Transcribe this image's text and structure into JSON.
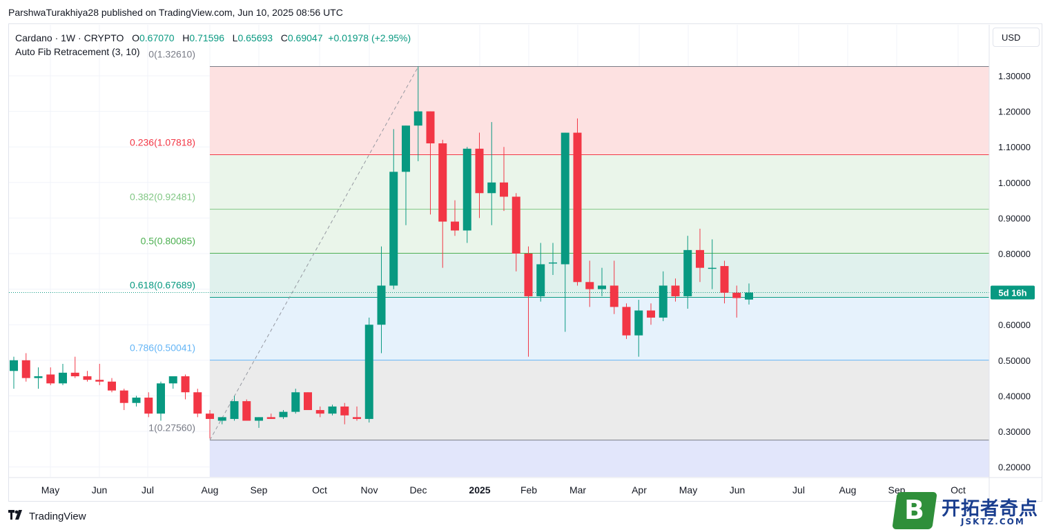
{
  "header": {
    "published_line": "ParshwaTurakhiya28 published on TradingView.com, Jun 10, 2025 08:56 UTC"
  },
  "legend": {
    "symbol": "Cardano · 1W · CRYPTO",
    "o_label": "O",
    "o_value": "0.67070",
    "h_label": "H",
    "h_value": "0.71596",
    "l_label": "L",
    "l_value": "0.65693",
    "c_label": "C",
    "c_value": "0.69047",
    "change": "+0.01978 (+2.95%)",
    "indicator": "Auto Fib Retracement (3, 10)"
  },
  "currency_button": "USD",
  "countdown_label": "5d 16h",
  "footer": {
    "brand": "TradingView"
  },
  "watermark": {
    "badge_letter": "B",
    "name": "开拓者奇点",
    "url": "JSKTZ.COM"
  },
  "colors": {
    "up": "#089981",
    "down": "#f23645",
    "fib_top_zone": "#fde1e1",
    "fib_green_zone": "#eaf5ea",
    "fib_teal_zone": "#e0f1ed",
    "fib_blue_zone": "#e6f2fc",
    "fib_gray_zone": "#ebebeb",
    "fib_bottom_zone": "#e2e6fb",
    "label_236": "#f23645",
    "label_382": "#81c784",
    "label_5": "#4caf50",
    "label_618": "#089981",
    "label_786": "#64b5f6",
    "label_0_1": "#787b86"
  },
  "chart_data": {
    "type": "candlestick",
    "symbol": "Cardano",
    "interval": "1W",
    "y_axis": {
      "min": 0.17,
      "max": 1.39,
      "ticks": [
        "1.30000",
        "1.20000",
        "1.10000",
        "1.00000",
        "0.90000",
        "0.80000",
        "0.70000",
        "0.60000",
        "0.50000",
        "0.40000",
        "0.30000",
        "0.20000"
      ],
      "position": "right"
    },
    "x_axis": {
      "ticks": [
        "May",
        "Jun",
        "Jul",
        "Aug",
        "Sep",
        "Oct",
        "Nov",
        "Dec",
        "2025",
        "Feb",
        "Mar",
        "Apr",
        "May",
        "Jun",
        "Jul",
        "Aug",
        "Sep",
        "Oct"
      ]
    },
    "current_price": 0.69047,
    "fib_levels": [
      {
        "ratio": "0",
        "label": "0(1.32610)",
        "price": 1.3261
      },
      {
        "ratio": "0.236",
        "label": "0.236(1.07818)",
        "price": 1.07818
      },
      {
        "ratio": "0.382",
        "label": "0.382(0.92481)",
        "price": 0.92481
      },
      {
        "ratio": "0.5",
        "label": "0.5(0.80085)",
        "price": 0.80085
      },
      {
        "ratio": "0.618",
        "label": "0.618(0.67689)",
        "price": 0.67689
      },
      {
        "ratio": "0.786",
        "label": "0.786(0.50041)",
        "price": 0.50041
      },
      {
        "ratio": "1",
        "label": "1(0.27560)",
        "price": 0.2756
      }
    ],
    "candles": [
      {
        "o": 0.47,
        "h": 0.51,
        "l": 0.42,
        "c": 0.5
      },
      {
        "o": 0.5,
        "h": 0.52,
        "l": 0.44,
        "c": 0.45
      },
      {
        "o": 0.45,
        "h": 0.48,
        "l": 0.42,
        "c": 0.455
      },
      {
        "o": 0.46,
        "h": 0.48,
        "l": 0.43,
        "c": 0.435
      },
      {
        "o": 0.435,
        "h": 0.49,
        "l": 0.43,
        "c": 0.465
      },
      {
        "o": 0.465,
        "h": 0.51,
        "l": 0.45,
        "c": 0.455
      },
      {
        "o": 0.455,
        "h": 0.47,
        "l": 0.44,
        "c": 0.445
      },
      {
        "o": 0.445,
        "h": 0.49,
        "l": 0.43,
        "c": 0.44
      },
      {
        "o": 0.44,
        "h": 0.45,
        "l": 0.41,
        "c": 0.415
      },
      {
        "o": 0.415,
        "h": 0.42,
        "l": 0.36,
        "c": 0.38
      },
      {
        "o": 0.38,
        "h": 0.4,
        "l": 0.37,
        "c": 0.395
      },
      {
        "o": 0.395,
        "h": 0.41,
        "l": 0.34,
        "c": 0.35
      },
      {
        "o": 0.35,
        "h": 0.44,
        "l": 0.33,
        "c": 0.435
      },
      {
        "o": 0.435,
        "h": 0.455,
        "l": 0.42,
        "c": 0.455
      },
      {
        "o": 0.455,
        "h": 0.46,
        "l": 0.39,
        "c": 0.41
      },
      {
        "o": 0.41,
        "h": 0.42,
        "l": 0.34,
        "c": 0.35
      },
      {
        "o": 0.35,
        "h": 0.36,
        "l": 0.28,
        "c": 0.335
      },
      {
        "o": 0.33,
        "h": 0.34,
        "l": 0.32,
        "c": 0.34
      },
      {
        "o": 0.335,
        "h": 0.4,
        "l": 0.33,
        "c": 0.385
      },
      {
        "o": 0.385,
        "h": 0.39,
        "l": 0.33,
        "c": 0.33
      },
      {
        "o": 0.33,
        "h": 0.34,
        "l": 0.31,
        "c": 0.34
      },
      {
        "o": 0.34,
        "h": 0.35,
        "l": 0.335,
        "c": 0.335
      },
      {
        "o": 0.34,
        "h": 0.36,
        "l": 0.335,
        "c": 0.355
      },
      {
        "o": 0.355,
        "h": 0.42,
        "l": 0.35,
        "c": 0.41
      },
      {
        "o": 0.41,
        "h": 0.41,
        "l": 0.36,
        "c": 0.36
      },
      {
        "o": 0.36,
        "h": 0.37,
        "l": 0.34,
        "c": 0.35
      },
      {
        "o": 0.35,
        "h": 0.375,
        "l": 0.345,
        "c": 0.37
      },
      {
        "o": 0.37,
        "h": 0.38,
        "l": 0.32,
        "c": 0.345
      },
      {
        "o": 0.34,
        "h": 0.37,
        "l": 0.33,
        "c": 0.335
      },
      {
        "o": 0.335,
        "h": 0.62,
        "l": 0.325,
        "c": 0.6
      },
      {
        "o": 0.6,
        "h": 0.82,
        "l": 0.52,
        "c": 0.71
      },
      {
        "o": 0.71,
        "h": 1.15,
        "l": 0.7,
        "c": 1.03
      },
      {
        "o": 1.03,
        "h": 1.16,
        "l": 0.88,
        "c": 1.16
      },
      {
        "o": 1.16,
        "h": 1.3261,
        "l": 1.06,
        "c": 1.2
      },
      {
        "o": 1.2,
        "h": 1.2,
        "l": 0.91,
        "c": 1.11
      },
      {
        "o": 1.11,
        "h": 1.12,
        "l": 0.76,
        "c": 0.89
      },
      {
        "o": 0.89,
        "h": 0.95,
        "l": 0.85,
        "c": 0.865
      },
      {
        "o": 0.865,
        "h": 1.1,
        "l": 0.83,
        "c": 1.095
      },
      {
        "o": 1.095,
        "h": 1.14,
        "l": 0.9,
        "c": 0.97
      },
      {
        "o": 0.97,
        "h": 1.17,
        "l": 0.88,
        "c": 1.0
      },
      {
        "o": 1.0,
        "h": 1.1,
        "l": 0.92,
        "c": 0.96
      },
      {
        "o": 0.96,
        "h": 0.97,
        "l": 0.75,
        "c": 0.8
      },
      {
        "o": 0.8,
        "h": 0.82,
        "l": 0.51,
        "c": 0.68
      },
      {
        "o": 0.68,
        "h": 0.83,
        "l": 0.665,
        "c": 0.77
      },
      {
        "o": 0.775,
        "h": 0.83,
        "l": 0.74,
        "c": 0.775
      },
      {
        "o": 0.77,
        "h": 1.14,
        "l": 0.58,
        "c": 1.14
      },
      {
        "o": 1.14,
        "h": 1.18,
        "l": 0.71,
        "c": 0.72
      },
      {
        "o": 0.72,
        "h": 0.78,
        "l": 0.65,
        "c": 0.7
      },
      {
        "o": 0.7,
        "h": 0.76,
        "l": 0.68,
        "c": 0.71
      },
      {
        "o": 0.71,
        "h": 0.78,
        "l": 0.63,
        "c": 0.65
      },
      {
        "o": 0.65,
        "h": 0.66,
        "l": 0.56,
        "c": 0.57
      },
      {
        "o": 0.57,
        "h": 0.67,
        "l": 0.51,
        "c": 0.64
      },
      {
        "o": 0.64,
        "h": 0.66,
        "l": 0.6,
        "c": 0.62
      },
      {
        "o": 0.62,
        "h": 0.75,
        "l": 0.61,
        "c": 0.71
      },
      {
        "o": 0.71,
        "h": 0.73,
        "l": 0.665,
        "c": 0.68
      },
      {
        "o": 0.68,
        "h": 0.85,
        "l": 0.645,
        "c": 0.81
      },
      {
        "o": 0.81,
        "h": 0.87,
        "l": 0.72,
        "c": 0.76
      },
      {
        "o": 0.76,
        "h": 0.84,
        "l": 0.7,
        "c": 0.76
      },
      {
        "o": 0.765,
        "h": 0.78,
        "l": 0.66,
        "c": 0.69
      },
      {
        "o": 0.69,
        "h": 0.71,
        "l": 0.62,
        "c": 0.675
      },
      {
        "o": 0.6707,
        "h": 0.71596,
        "l": 0.65693,
        "c": 0.69047
      }
    ]
  }
}
